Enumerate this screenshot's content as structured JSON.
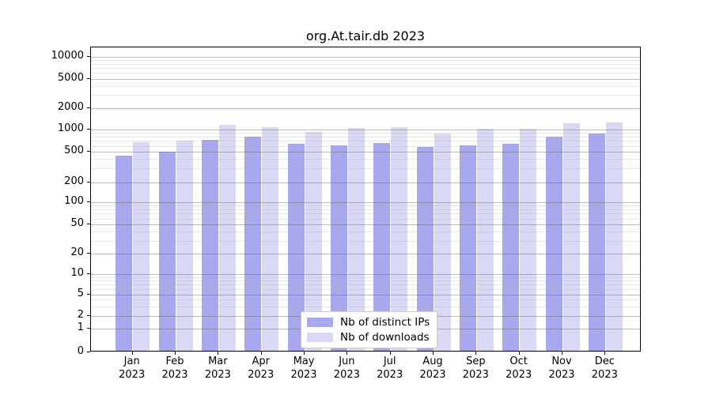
{
  "title": "org.At.tair.db 2023",
  "chart_data": {
    "type": "bar",
    "title": "org.At.tair.db 2023",
    "xlabel": "",
    "ylabel": "",
    "y_scale": "log-like (custom ticks, 0 baseline)",
    "grid": "on",
    "legend_position": "bottom-center",
    "categories": [
      "Jan 2023",
      "Feb 2023",
      "Mar 2023",
      "Apr 2023",
      "May 2023",
      "Jun 2023",
      "Jul 2023",
      "Aug 2023",
      "Sep 2023",
      "Oct 2023",
      "Nov 2023",
      "Dec 2023"
    ],
    "yticks": [
      0,
      1,
      2,
      5,
      10,
      20,
      50,
      100,
      200,
      500,
      1000,
      2000,
      5000,
      10000
    ],
    "ylim": [
      0,
      13000
    ],
    "series": [
      {
        "name": "Nb of distinct IPs",
        "color": "#a8a8ee",
        "values": [
          425,
          480,
          700,
          770,
          620,
          590,
          630,
          560,
          590,
          610,
          780,
          850
        ]
      },
      {
        "name": "Nb of downloads",
        "color": "#d9d9f6",
        "values": [
          650,
          680,
          1120,
          1040,
          900,
          1020,
          1040,
          850,
          1000,
          990,
          1180,
          1220
        ]
      }
    ]
  }
}
